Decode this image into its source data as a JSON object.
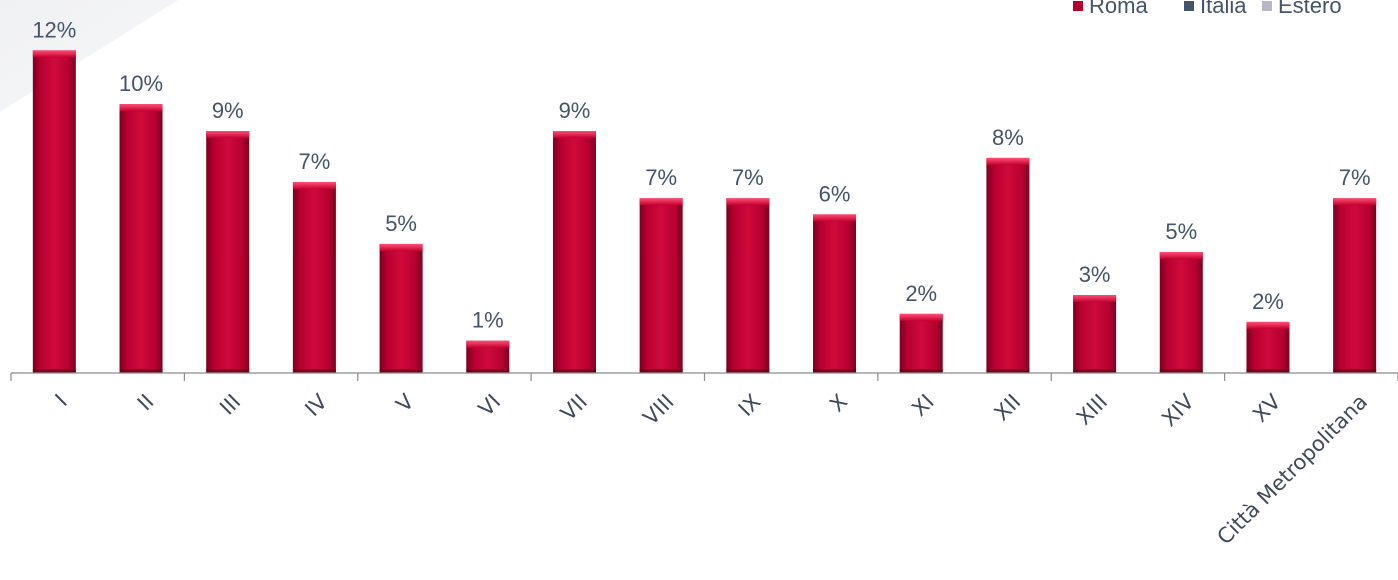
{
  "chart_data": {
    "type": "bar",
    "categories": [
      "I",
      "II",
      "III",
      "IV",
      "V",
      "VI",
      "VII",
      "VIII",
      "IX",
      "X",
      "XI",
      "XII",
      "XIII",
      "XIV",
      "XV",
      "Città Metropolitana"
    ],
    "series": [
      {
        "name": "Roma",
        "color": "#b5002f",
        "values": [
          12.0,
          10.0,
          9.0,
          7.1,
          4.8,
          1.2,
          9.0,
          6.5,
          6.5,
          5.9,
          2.2,
          8.0,
          2.9,
          4.5,
          1.9,
          6.5
        ],
        "labels": [
          "12%",
          "10%",
          "9%",
          "7%",
          "5%",
          "1%",
          "9%",
          "7%",
          "7%",
          "6%",
          "2%",
          "8%",
          "3%",
          "5%",
          "2%",
          "7%"
        ]
      }
    ],
    "legend": {
      "placement": "top-right",
      "entries": [
        {
          "name": "Roma",
          "color": "#b5002f"
        },
        {
          "name": "Italia",
          "color": "#44546a"
        },
        {
          "name": "Estero",
          "color": "#b7b7c8"
        }
      ]
    },
    "title": "",
    "xlabel": "",
    "ylabel": "",
    "ylim": [
      0,
      12.2
    ],
    "grid": false
  }
}
